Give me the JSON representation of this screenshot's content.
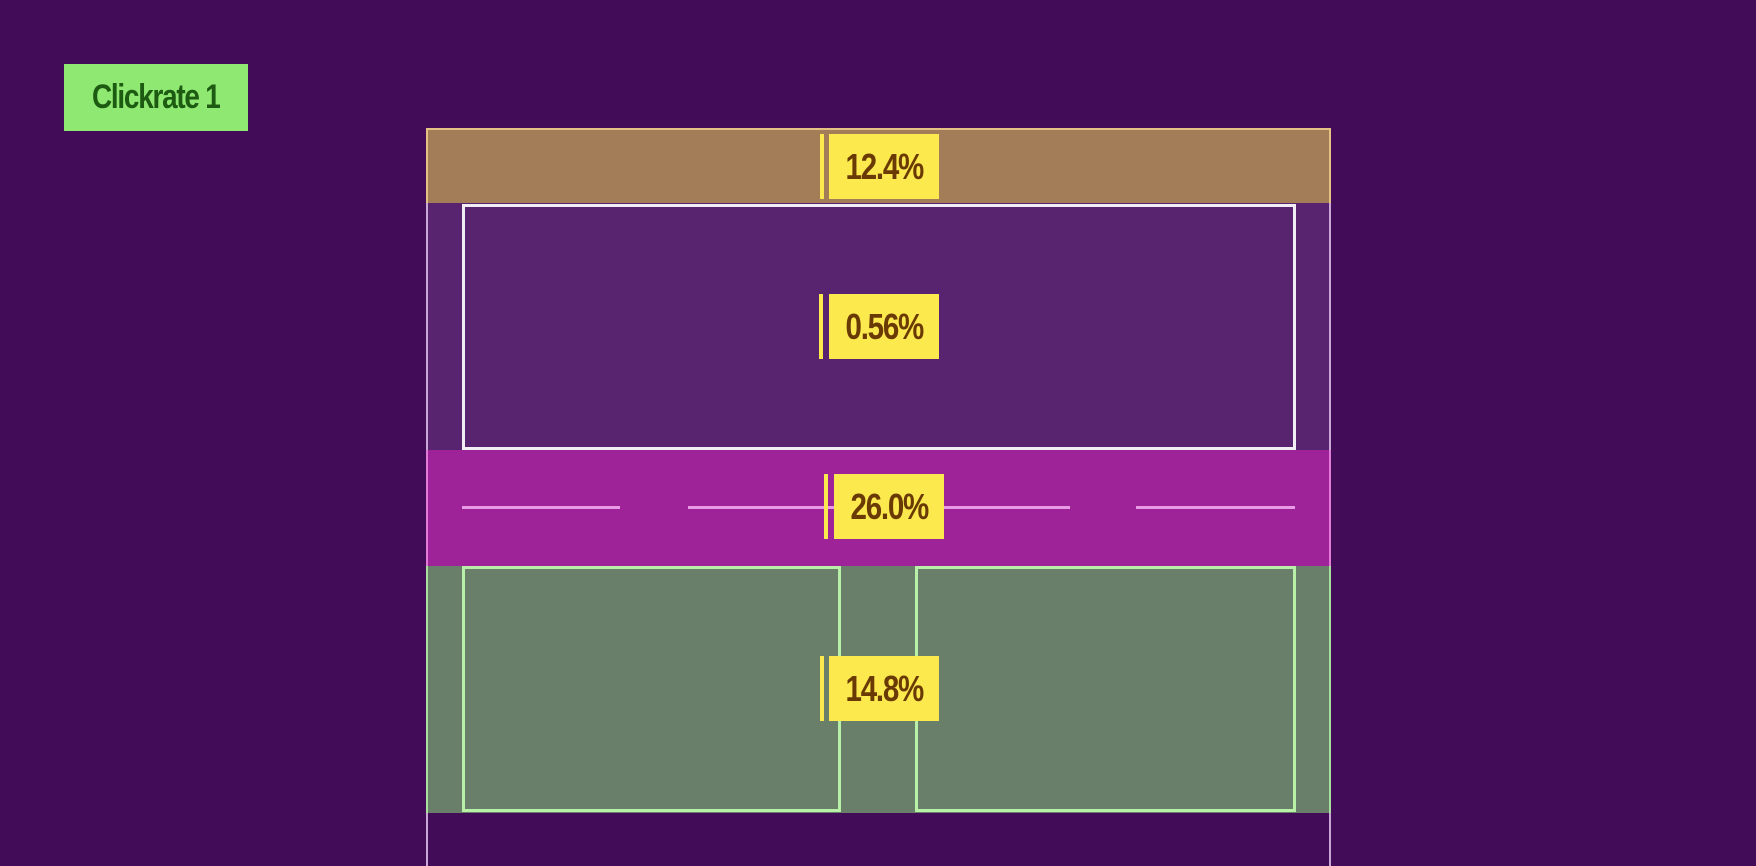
{
  "badge": "Clickrate 1",
  "sections": [
    {
      "label": "12.4%"
    },
    {
      "label": "0.56%"
    },
    {
      "label": "26.0%"
    },
    {
      "label": "14.8%"
    }
  ]
}
